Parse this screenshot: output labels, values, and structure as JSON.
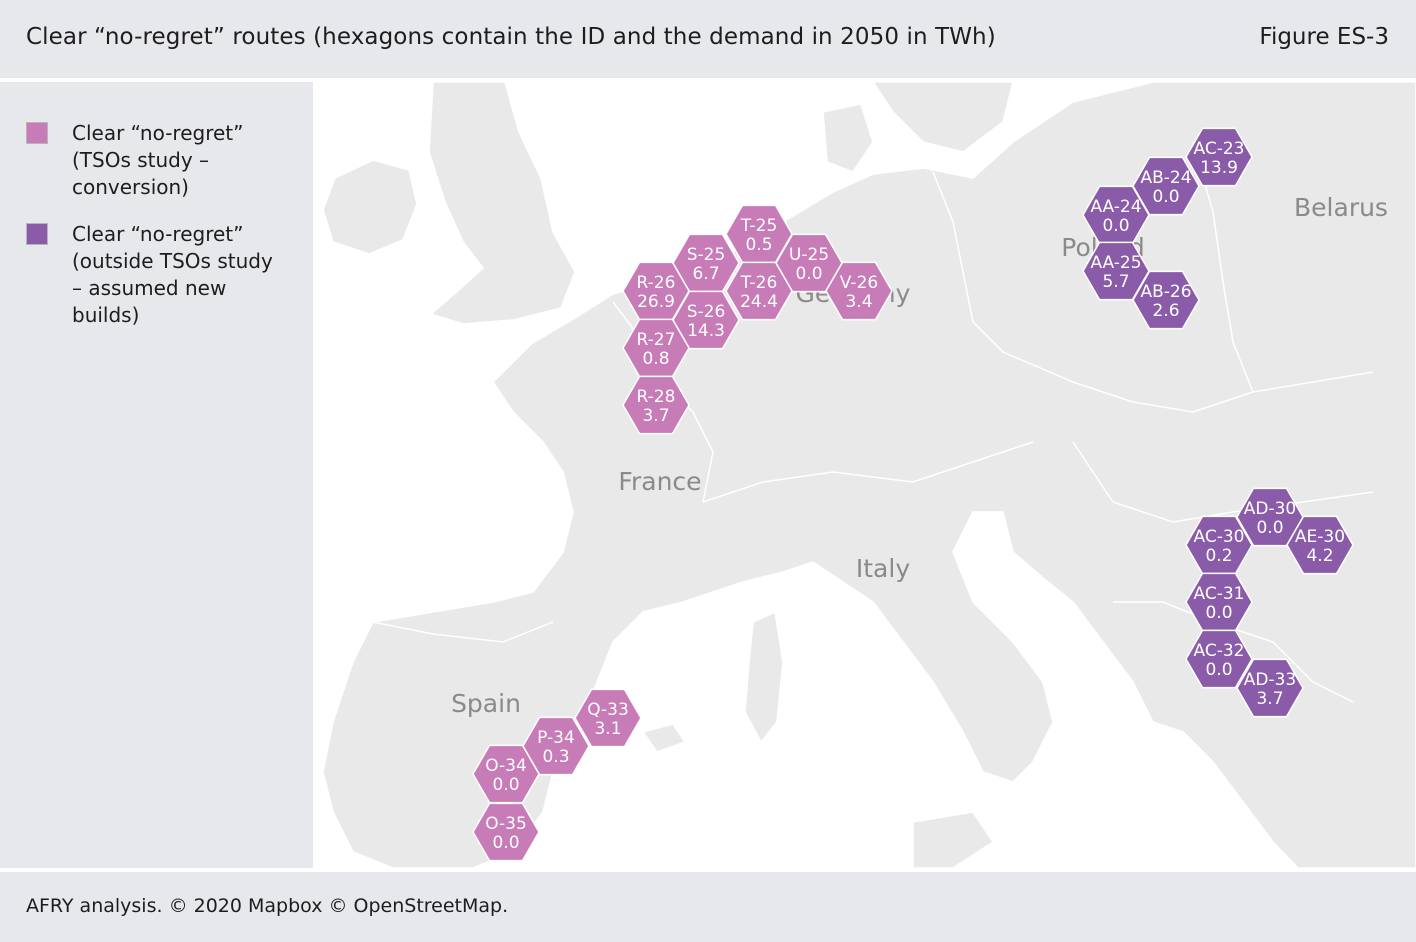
{
  "header": {
    "title": "Clear “no-regret” routes (hexagons contain the ID and the demand in 2050 in TWh)",
    "figure": "Figure ES-3"
  },
  "legend": [
    {
      "label": "Clear “no-regret” (TSOs study – conversion)",
      "color": "#c77bb7"
    },
    {
      "label": "Clear “no-regret” (outside TSOs study – assumed new builds)",
      "color": "#8a5ba9"
    }
  ],
  "map": {
    "country_labels": [
      "France",
      "Italy",
      "Spain",
      "Belarus",
      "Germany",
      "Poland"
    ],
    "hexagons": [
      {
        "id": "T-25",
        "demand": "0.5",
        "category": 0
      },
      {
        "id": "S-25",
        "demand": "6.7",
        "category": 0
      },
      {
        "id": "U-25",
        "demand": "0.0",
        "category": 0
      },
      {
        "id": "R-26",
        "demand": "26.9",
        "category": 0
      },
      {
        "id": "T-26",
        "demand": "24.4",
        "category": 0
      },
      {
        "id": "V-26",
        "demand": "3.4",
        "category": 0
      },
      {
        "id": "S-26",
        "demand": "14.3",
        "category": 0
      },
      {
        "id": "R-27",
        "demand": "0.8",
        "category": 0
      },
      {
        "id": "R-28",
        "demand": "3.7",
        "category": 0
      },
      {
        "id": "Q-33",
        "demand": "3.1",
        "category": 0
      },
      {
        "id": "P-34",
        "demand": "0.3",
        "category": 0
      },
      {
        "id": "O-34",
        "demand": "0.0",
        "category": 0
      },
      {
        "id": "O-35",
        "demand": "0.0",
        "category": 0
      },
      {
        "id": "AC-23",
        "demand": "13.9",
        "category": 1
      },
      {
        "id": "AB-24",
        "demand": "0.0",
        "category": 1
      },
      {
        "id": "AA-24",
        "demand": "0.0",
        "category": 1
      },
      {
        "id": "AA-25",
        "demand": "5.7",
        "category": 1
      },
      {
        "id": "AB-26",
        "demand": "2.6",
        "category": 1
      },
      {
        "id": "AD-30",
        "demand": "0.0",
        "category": 1
      },
      {
        "id": "AC-30",
        "demand": "0.2",
        "category": 1
      },
      {
        "id": "AE-30",
        "demand": "4.2",
        "category": 1
      },
      {
        "id": "AC-31",
        "demand": "0.0",
        "category": 1
      },
      {
        "id": "AC-32",
        "demand": "0.0",
        "category": 1
      },
      {
        "id": "AD-33",
        "demand": "3.7",
        "category": 1
      }
    ]
  },
  "footer": {
    "source": "AFRY analysis. © 2020 Mapbox © OpenStreetMap."
  }
}
